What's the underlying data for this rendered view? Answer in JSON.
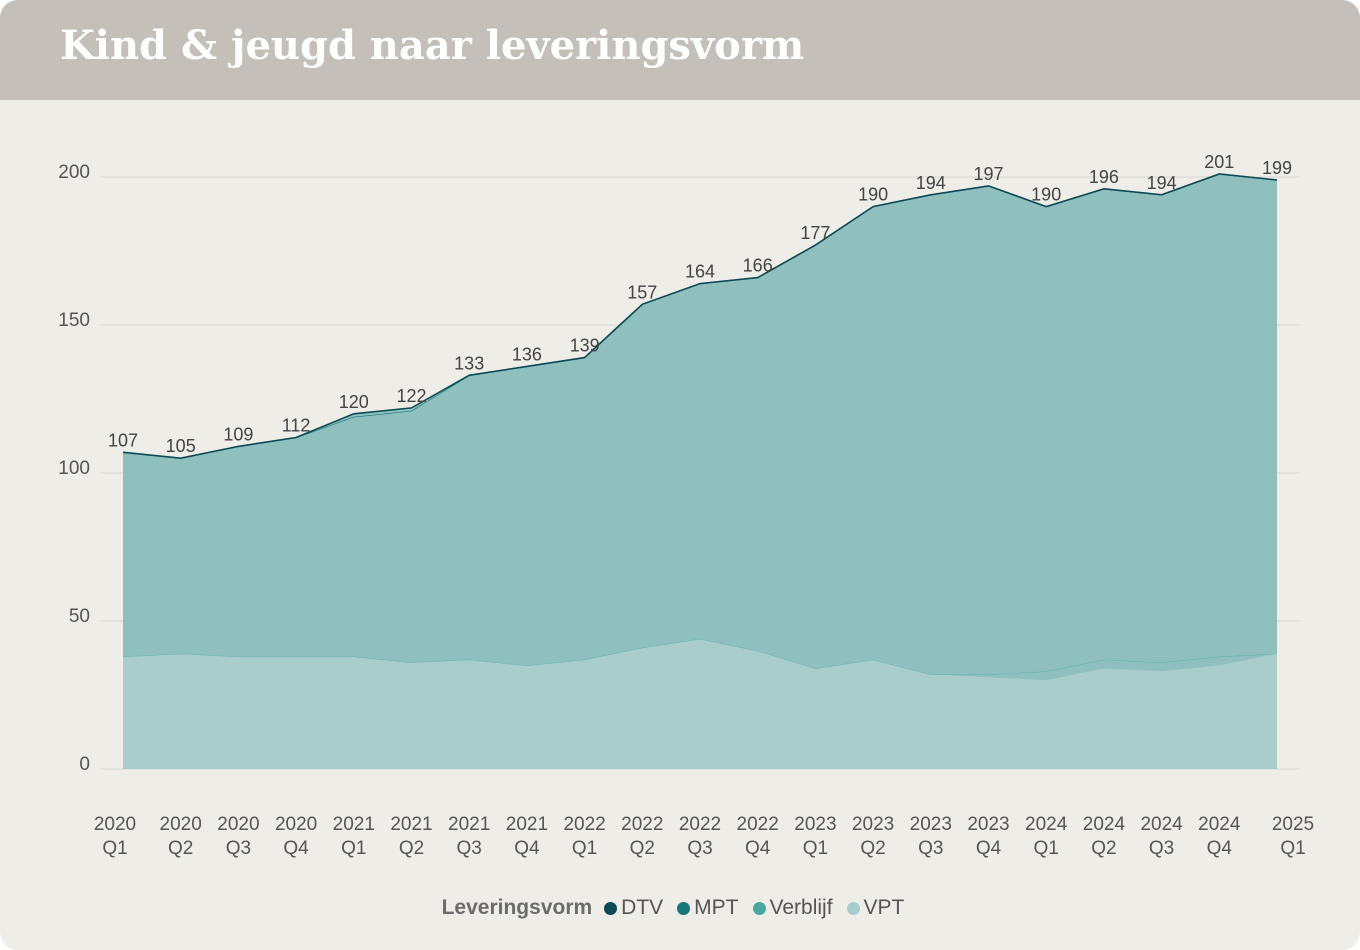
{
  "header": {
    "title": "Kind & jeugd naar leveringsvorm"
  },
  "chart_data": {
    "type": "area",
    "title": "Kind & jeugd naar leveringsvorm",
    "xlabel": "",
    "ylabel": "",
    "ylim": [
      0,
      200
    ],
    "yticks": [
      0,
      50,
      100,
      150,
      200
    ],
    "grid": true,
    "stacked": true,
    "legend_placement": "bottom",
    "categories": [
      [
        "2020",
        "Q1"
      ],
      [
        "2020",
        "Q2"
      ],
      [
        "2020",
        "Q3"
      ],
      [
        "2020",
        "Q4"
      ],
      [
        "2021",
        "Q1"
      ],
      [
        "2021",
        "Q2"
      ],
      [
        "2021",
        "Q3"
      ],
      [
        "2021",
        "Q4"
      ],
      [
        "2022",
        "Q1"
      ],
      [
        "2022",
        "Q2"
      ],
      [
        "2022",
        "Q3"
      ],
      [
        "2022",
        "Q4"
      ],
      [
        "2023",
        "Q1"
      ],
      [
        "2023",
        "Q2"
      ],
      [
        "2023",
        "Q3"
      ],
      [
        "2023",
        "Q4"
      ],
      [
        "2024",
        "Q1"
      ],
      [
        "2024",
        "Q2"
      ],
      [
        "2024",
        "Q3"
      ],
      [
        "2024",
        "Q4"
      ],
      [
        "2025",
        "Q1"
      ]
    ],
    "totals": [
      107,
      105,
      109,
      112,
      120,
      122,
      133,
      136,
      139,
      157,
      164,
      166,
      177,
      190,
      194,
      197,
      190,
      196,
      194,
      201,
      199
    ],
    "series": [
      {
        "name": "VPT",
        "color": "#a9cdcb",
        "values": [
          38,
          39,
          38,
          38,
          38,
          36,
          37,
          35,
          37,
          41,
          44,
          40,
          34,
          37,
          32,
          31,
          30,
          34,
          33,
          35,
          39
        ]
      },
      {
        "name": "Verblijf",
        "color": "#4aa6a2",
        "values": [
          0,
          0,
          0,
          0,
          0,
          0,
          0,
          0,
          0,
          0,
          0,
          0,
          0,
          0,
          0,
          1,
          3,
          3,
          3,
          3,
          0
        ]
      },
      {
        "name": "MPT",
        "color": "#16767a",
        "values": [
          69,
          66,
          71,
          74,
          81,
          85,
          96,
          101,
          102,
          116,
          120,
          126,
          143,
          153,
          162,
          165,
          157,
          159,
          158,
          163,
          160
        ]
      },
      {
        "name": "DTV",
        "color": "#0e4a55",
        "values": [
          0,
          0,
          0,
          0,
          1,
          1,
          0,
          0,
          0,
          0,
          0,
          0,
          0,
          0,
          0,
          0,
          0,
          0,
          0,
          0,
          0
        ]
      }
    ]
  },
  "legend": {
    "title": "Leveringsvorm",
    "items": [
      {
        "label": "DTV",
        "color": "#0e4a55"
      },
      {
        "label": "MPT",
        "color": "#16767a"
      },
      {
        "label": "Verblijf",
        "color": "#4aa6a2"
      },
      {
        "label": "VPT",
        "color": "#a9cdcb"
      }
    ]
  }
}
